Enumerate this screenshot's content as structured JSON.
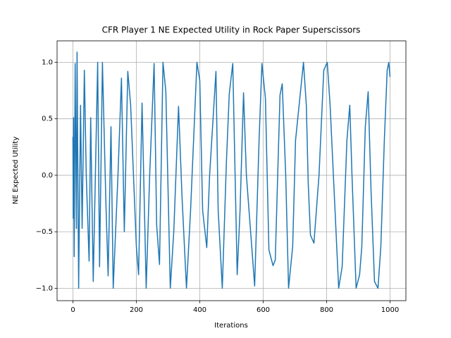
{
  "chart_data": {
    "type": "line",
    "title": "CFR Player 1 NE Expected Utility in Rock Paper Superscissors",
    "x_label": "Iterations",
    "y_label": "NE Expected Utility",
    "x": [
      0,
      1,
      2,
      4,
      7,
      11,
      13,
      18,
      24,
      29,
      36,
      42,
      51,
      56,
      64,
      78,
      84,
      93,
      104,
      111,
      120,
      127,
      142,
      153,
      162,
      173,
      182,
      200,
      207,
      218,
      231,
      242,
      256,
      264,
      273,
      284,
      293,
      307,
      318,
      333,
      344,
      358,
      371,
      391,
      400,
      409,
      422,
      431,
      451,
      458,
      471,
      484,
      493,
      504,
      518,
      527,
      538,
      547,
      567,
      573,
      587,
      596,
      607,
      618,
      631,
      638,
      653,
      660,
      671,
      680,
      693,
      702,
      727,
      736,
      742,
      749,
      760,
      776,
      791,
      802,
      811,
      838,
      849,
      864,
      873,
      880,
      893,
      904,
      911,
      922,
      931,
      940,
      951,
      962,
      971,
      982,
      991,
      996,
      1000
    ],
    "series": [
      {
        "name": "NE Expected Utility",
        "color": "#1f77b4",
        "values": [
          0.34,
          -0.38,
          0.51,
          -0.72,
          0.99,
          -0.47,
          1.09,
          -1.0,
          0.62,
          -0.47,
          0.93,
          0.0,
          -0.76,
          0.51,
          -0.94,
          1.0,
          -0.81,
          1.0,
          -0.25,
          -0.89,
          0.43,
          -1.0,
          0.0,
          0.86,
          -0.5,
          0.92,
          0.62,
          -0.63,
          -0.88,
          0.64,
          -1.0,
          0.0,
          0.99,
          -0.44,
          -0.79,
          1.0,
          0.74,
          -1.0,
          -0.5,
          0.61,
          -0.19,
          -1.0,
          -0.31,
          1.0,
          0.84,
          -0.31,
          -0.64,
          0.0,
          0.92,
          -0.31,
          -1.0,
          0.12,
          0.72,
          0.99,
          -0.88,
          -0.31,
          0.73,
          0.0,
          -0.75,
          -0.98,
          0.31,
          0.99,
          0.68,
          -0.66,
          -0.8,
          -0.75,
          0.71,
          0.81,
          0.0,
          -1.0,
          -0.63,
          0.31,
          1.0,
          0.62,
          -0.07,
          -0.53,
          -0.6,
          0.0,
          0.93,
          1.0,
          0.62,
          -1.0,
          -0.81,
          0.31,
          0.62,
          0.0,
          -1.0,
          -0.88,
          -0.63,
          0.43,
          0.74,
          -0.13,
          -0.94,
          -1.0,
          -0.63,
          0.31,
          0.93,
          1.0,
          0.87
        ]
      }
    ],
    "xlim": [
      -50,
      1050
    ],
    "ylim": [
      -1.11,
      1.19
    ],
    "xticks": [
      0,
      200,
      400,
      600,
      800,
      1000
    ],
    "yticks": [
      {
        "value": -1,
        "label": "−1.0"
      },
      {
        "value": -0.5,
        "label": "−0.5"
      },
      {
        "value": 0,
        "label": "0.0"
      },
      {
        "value": 0.5,
        "label": "0.5"
      },
      {
        "value": 1,
        "label": "1.0"
      }
    ],
    "grid": true
  }
}
